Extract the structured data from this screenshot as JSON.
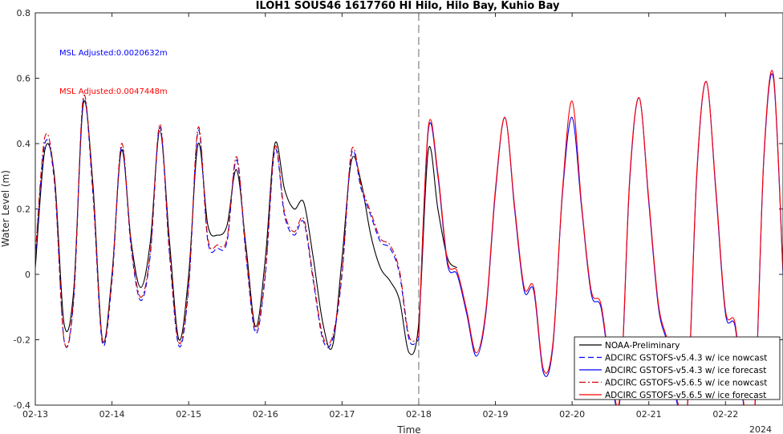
{
  "chart_data": {
    "type": "line",
    "title": "ILOH1 SOUS46 1617760 HI Hilo, Hilo Bay, Kuhio Bay",
    "xlabel": "Time",
    "ylabel": "Water Level (m)",
    "ylim": [
      -0.4,
      0.8
    ],
    "yticks": [
      -0.4,
      -0.2,
      0,
      0.2,
      0.4,
      0.6,
      0.8
    ],
    "ytick_labels": [
      "-0.4",
      "-0.2",
      "0",
      "0.2",
      "0.4",
      "0.6",
      "0.8"
    ],
    "xlim": [
      "2024-02-13",
      "2024-02-22 18:00"
    ],
    "xticks": [
      "2024-02-13",
      "2024-02-14",
      "2024-02-15",
      "2024-02-16",
      "2024-02-17",
      "2024-02-18",
      "2024-02-19",
      "2024-02-20",
      "2024-02-21",
      "2024-02-22"
    ],
    "xtick_labels": [
      "02-13",
      "02-14",
      "02-15",
      "02-16",
      "02-17",
      "02-18",
      "02-19",
      "02-20",
      "02-21",
      "02-22"
    ],
    "year_label": "2024",
    "nowcast_forecast_divider": "2024-02-18",
    "annotations": [
      {
        "text": "MSL Adjusted:0.0020632m",
        "color": "#0000ff"
      },
      {
        "text": "MSL Adjusted:0.0047448m",
        "color": "#ff0000"
      }
    ],
    "legend_position": "bottom-right",
    "series": [
      {
        "name": "NOAA-Preliminary",
        "color": "#000000",
        "dash": "solid",
        "x": [
          "2024-02-13 00:00",
          "2024-02-13 03:00",
          "2024-02-13 06:00",
          "2024-02-13 09:00",
          "2024-02-13 12:00",
          "2024-02-13 15:00",
          "2024-02-13 18:00",
          "2024-02-13 21:00",
          "2024-02-14 00:00",
          "2024-02-14 03:00",
          "2024-02-14 06:00",
          "2024-02-14 09:00",
          "2024-02-14 12:00",
          "2024-02-14 15:00",
          "2024-02-14 18:00",
          "2024-02-14 21:00",
          "2024-02-15 00:00",
          "2024-02-15 03:00",
          "2024-02-15 06:00",
          "2024-02-15 09:00",
          "2024-02-15 12:00",
          "2024-02-15 15:00",
          "2024-02-15 18:00",
          "2024-02-15 21:00",
          "2024-02-16 00:00",
          "2024-02-16 03:00",
          "2024-02-16 06:00",
          "2024-02-16 09:00",
          "2024-02-16 12:00",
          "2024-02-16 15:00",
          "2024-02-16 18:00",
          "2024-02-16 21:00",
          "2024-02-17 00:00",
          "2024-02-17 03:00",
          "2024-02-17 06:00",
          "2024-02-17 09:00",
          "2024-02-17 12:00",
          "2024-02-17 15:00",
          "2024-02-17 18:00",
          "2024-02-17 21:00",
          "2024-02-18 00:00",
          "2024-02-18 03:00",
          "2024-02-18 06:00",
          "2024-02-18 09:00",
          "2024-02-18 12:00"
        ],
        "y": [
          0.02,
          0.38,
          0.3,
          -0.15,
          -0.05,
          0.52,
          0.28,
          -0.2,
          0.0,
          0.38,
          0.1,
          -0.04,
          0.1,
          0.44,
          0.1,
          -0.2,
          0.0,
          0.4,
          0.15,
          0.12,
          0.15,
          0.32,
          0.08,
          -0.16,
          0.05,
          0.4,
          0.26,
          0.2,
          0.22,
          0.05,
          -0.15,
          -0.22,
          0.05,
          0.35,
          0.28,
          0.12,
          0.02,
          -0.02,
          -0.08,
          -0.24,
          -0.15,
          0.38,
          0.2,
          0.05,
          0.02
        ]
      },
      {
        "name": "ADCIRC GSTOFS-v5.4.3 w/ ice nowcast",
        "color": "#0000ff",
        "dash": "dashed",
        "x": [
          "2024-02-13 00:00",
          "2024-02-13 03:00",
          "2024-02-13 06:00",
          "2024-02-13 09:00",
          "2024-02-13 12:00",
          "2024-02-13 15:00",
          "2024-02-13 18:00",
          "2024-02-13 21:00",
          "2024-02-14 00:00",
          "2024-02-14 03:00",
          "2024-02-14 06:00",
          "2024-02-14 09:00",
          "2024-02-14 12:00",
          "2024-02-14 15:00",
          "2024-02-14 18:00",
          "2024-02-14 21:00",
          "2024-02-15 00:00",
          "2024-02-15 03:00",
          "2024-02-15 06:00",
          "2024-02-15 09:00",
          "2024-02-15 12:00",
          "2024-02-15 15:00",
          "2024-02-15 18:00",
          "2024-02-15 21:00",
          "2024-02-16 00:00",
          "2024-02-16 03:00",
          "2024-02-16 06:00",
          "2024-02-16 09:00",
          "2024-02-16 12:00",
          "2024-02-16 15:00",
          "2024-02-16 18:00",
          "2024-02-16 21:00",
          "2024-02-17 00:00",
          "2024-02-17 03:00",
          "2024-02-17 06:00",
          "2024-02-17 09:00",
          "2024-02-17 12:00",
          "2024-02-17 15:00",
          "2024-02-17 18:00",
          "2024-02-17 21:00",
          "2024-02-18 00:00"
        ],
        "y": [
          0.05,
          0.4,
          0.28,
          -0.2,
          -0.08,
          0.53,
          0.25,
          -0.21,
          -0.02,
          0.39,
          0.08,
          -0.08,
          0.06,
          0.45,
          0.06,
          -0.22,
          -0.04,
          0.44,
          0.1,
          0.08,
          0.1,
          0.35,
          0.05,
          -0.18,
          0.0,
          0.38,
          0.18,
          0.12,
          0.16,
          -0.02,
          -0.2,
          -0.2,
          0.0,
          0.37,
          0.26,
          0.18,
          0.1,
          0.08,
          0.0,
          -0.2,
          -0.2
        ]
      },
      {
        "name": "ADCIRC GSTOFS-v5.4.3 w/ ice forecast",
        "color": "#0000ff",
        "dash": "solid",
        "x": [
          "2024-02-18 00:00",
          "2024-02-18 03:00",
          "2024-02-18 06:00",
          "2024-02-18 09:00",
          "2024-02-18 12:00",
          "2024-02-18 15:00",
          "2024-02-18 18:00",
          "2024-02-18 21:00",
          "2024-02-19 00:00",
          "2024-02-19 03:00",
          "2024-02-19 06:00",
          "2024-02-19 09:00",
          "2024-02-19 12:00",
          "2024-02-19 15:00",
          "2024-02-19 18:00",
          "2024-02-19 21:00",
          "2024-02-20 00:00",
          "2024-02-20 03:00",
          "2024-02-20 06:00",
          "2024-02-20 09:00",
          "2024-02-20 12:00",
          "2024-02-20 15:00",
          "2024-02-20 18:00",
          "2024-02-20 21:00",
          "2024-02-21 00:00",
          "2024-02-21 03:00",
          "2024-02-21 06:00",
          "2024-02-21 09:00",
          "2024-02-21 12:00",
          "2024-02-21 15:00",
          "2024-02-21 18:00",
          "2024-02-21 21:00",
          "2024-02-22 00:00",
          "2024-02-22 03:00",
          "2024-02-22 06:00",
          "2024-02-22 09:00",
          "2024-02-22 12:00",
          "2024-02-22 15:00",
          "2024-02-22 18:00"
        ],
        "y": [
          -0.2,
          0.44,
          0.3,
          0.03,
          0.0,
          -0.12,
          -0.25,
          -0.12,
          0.25,
          0.48,
          0.2,
          -0.05,
          -0.05,
          -0.3,
          -0.22,
          0.25,
          0.48,
          0.2,
          -0.06,
          -0.1,
          -0.3,
          -0.38,
          0.28,
          0.54,
          0.22,
          -0.1,
          -0.22,
          -0.4,
          -0.42,
          0.3,
          0.59,
          0.25,
          -0.12,
          -0.16,
          -0.42,
          -0.44,
          0.35,
          0.6,
          0.0
        ]
      },
      {
        "name": "ADCIRC GSTOFS-v5.6.5 w/ ice nowcast",
        "color": "#d40000",
        "dash": "dashdot",
        "x": [
          "2024-02-13 00:00",
          "2024-02-13 03:00",
          "2024-02-13 06:00",
          "2024-02-13 09:00",
          "2024-02-13 12:00",
          "2024-02-13 15:00",
          "2024-02-13 18:00",
          "2024-02-13 21:00",
          "2024-02-14 00:00",
          "2024-02-14 03:00",
          "2024-02-14 06:00",
          "2024-02-14 09:00",
          "2024-02-14 12:00",
          "2024-02-14 15:00",
          "2024-02-14 18:00",
          "2024-02-14 21:00",
          "2024-02-15 00:00",
          "2024-02-15 03:00",
          "2024-02-15 06:00",
          "2024-02-15 09:00",
          "2024-02-15 12:00",
          "2024-02-15 15:00",
          "2024-02-15 18:00",
          "2024-02-15 21:00",
          "2024-02-16 00:00",
          "2024-02-16 03:00",
          "2024-02-16 06:00",
          "2024-02-16 09:00",
          "2024-02-16 12:00",
          "2024-02-16 15:00",
          "2024-02-16 18:00",
          "2024-02-16 21:00",
          "2024-02-17 00:00",
          "2024-02-17 03:00",
          "2024-02-17 06:00",
          "2024-02-17 09:00",
          "2024-02-17 12:00",
          "2024-02-17 15:00",
          "2024-02-17 18:00",
          "2024-02-17 21:00",
          "2024-02-18 00:00"
        ],
        "y": [
          0.06,
          0.42,
          0.29,
          -0.2,
          -0.07,
          0.54,
          0.26,
          -0.2,
          -0.01,
          0.4,
          0.09,
          -0.07,
          0.07,
          0.46,
          0.07,
          -0.21,
          -0.03,
          0.45,
          0.11,
          0.09,
          0.11,
          0.36,
          0.06,
          -0.17,
          0.01,
          0.39,
          0.19,
          0.13,
          0.17,
          -0.01,
          -0.19,
          -0.19,
          0.01,
          0.38,
          0.27,
          0.19,
          0.11,
          0.09,
          0.01,
          -0.19,
          -0.19
        ]
      },
      {
        "name": "ADCIRC GSTOFS-v5.6.5 w/ ice forecast",
        "color": "#ff0000",
        "dash": "solid",
        "x": [
          "2024-02-18 00:00",
          "2024-02-18 03:00",
          "2024-02-18 06:00",
          "2024-02-18 09:00",
          "2024-02-18 12:00",
          "2024-02-18 15:00",
          "2024-02-18 18:00",
          "2024-02-18 21:00",
          "2024-02-19 00:00",
          "2024-02-19 03:00",
          "2024-02-19 06:00",
          "2024-02-19 09:00",
          "2024-02-19 12:00",
          "2024-02-19 15:00",
          "2024-02-19 18:00",
          "2024-02-19 21:00",
          "2024-02-20 00:00",
          "2024-02-20 03:00",
          "2024-02-20 06:00",
          "2024-02-20 09:00",
          "2024-02-20 12:00",
          "2024-02-20 15:00",
          "2024-02-20 18:00",
          "2024-02-20 21:00",
          "2024-02-21 00:00",
          "2024-02-21 03:00",
          "2024-02-21 06:00",
          "2024-02-21 09:00",
          "2024-02-21 12:00",
          "2024-02-21 15:00",
          "2024-02-21 18:00",
          "2024-02-21 21:00",
          "2024-02-22 00:00",
          "2024-02-22 03:00",
          "2024-02-22 06:00",
          "2024-02-22 09:00",
          "2024-02-22 12:00",
          "2024-02-22 15:00",
          "2024-02-22 18:00"
        ],
        "y": [
          -0.19,
          0.45,
          0.31,
          0.04,
          0.01,
          -0.11,
          -0.24,
          -0.11,
          0.26,
          0.48,
          0.21,
          -0.04,
          -0.04,
          -0.29,
          -0.21,
          0.26,
          0.53,
          0.21,
          -0.05,
          -0.09,
          -0.29,
          -0.37,
          0.29,
          0.54,
          0.23,
          -0.09,
          -0.21,
          -0.39,
          -0.41,
          0.31,
          0.59,
          0.26,
          -0.11,
          -0.15,
          -0.41,
          -0.43,
          0.36,
          0.61,
          0.01
        ]
      }
    ]
  }
}
